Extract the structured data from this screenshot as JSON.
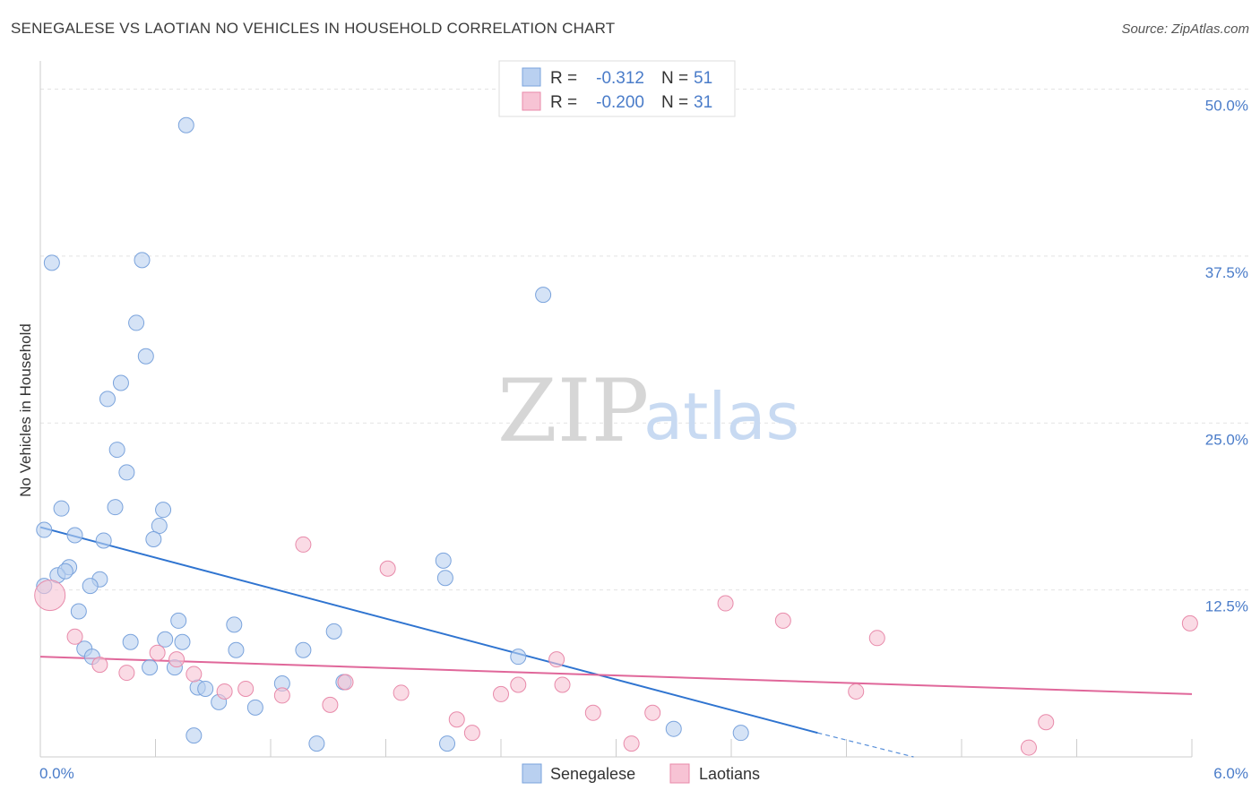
{
  "title": "SENEGALESE VS LAOTIAN NO VEHICLES IN HOUSEHOLD CORRELATION CHART",
  "source": "Source: ZipAtlas.com",
  "watermark": {
    "zip": "ZIP",
    "atlas": "atlas"
  },
  "colors": {
    "senegalese_fill": "#b9d0f0",
    "senegalese_stroke": "#7aa3dc",
    "senegalese_line": "#2f74d0",
    "laotian_fill": "#f7c3d4",
    "laotian_stroke": "#e88aaa",
    "laotian_line": "#e0679a",
    "tick_label": "#4a7cc9",
    "grid": "#e3e3e3"
  },
  "legend": {
    "r_label": "R =",
    "n_label": "N =",
    "rows": [
      {
        "r": "-0.312",
        "n": "51"
      },
      {
        "r": "-0.200",
        "n": "31"
      }
    ]
  },
  "chart_data": {
    "type": "scatter",
    "title": "SENEGALESE VS LAOTIAN NO VEHICLES IN HOUSEHOLD CORRELATION CHART",
    "xlabel": "",
    "ylabel": "No Vehicles in Household",
    "xlim": [
      0,
      6.0
    ],
    "ylim": [
      0,
      50.0
    ],
    "x_tick_labels": [
      "0.0%",
      "6.0%"
    ],
    "y_ticks": [
      12.5,
      25.0,
      37.5,
      50.0
    ],
    "y_tick_labels": [
      "12.5%",
      "25.0%",
      "37.5%",
      "50.0%"
    ],
    "grid": true,
    "legend_position": "top-center",
    "series": [
      {
        "name": "Senegalese",
        "points": [
          [
            0.76,
            47.3
          ],
          [
            0.06,
            37.0
          ],
          [
            0.53,
            37.2
          ],
          [
            2.62,
            34.6
          ],
          [
            0.5,
            32.5
          ],
          [
            0.55,
            30.0
          ],
          [
            0.42,
            28.0
          ],
          [
            0.35,
            26.8
          ],
          [
            0.4,
            23.0
          ],
          [
            0.45,
            21.3
          ],
          [
            0.11,
            18.6
          ],
          [
            0.39,
            18.7
          ],
          [
            0.64,
            18.5
          ],
          [
            0.02,
            17.0
          ],
          [
            0.62,
            17.3
          ],
          [
            0.18,
            16.6
          ],
          [
            0.33,
            16.2
          ],
          [
            0.59,
            16.3
          ],
          [
            2.1,
            14.7
          ],
          [
            0.15,
            14.2
          ],
          [
            0.09,
            13.6
          ],
          [
            0.13,
            13.9
          ],
          [
            0.31,
            13.3
          ],
          [
            2.11,
            13.4
          ],
          [
            0.26,
            12.8
          ],
          [
            0.02,
            12.8
          ],
          [
            0.2,
            10.9
          ],
          [
            0.72,
            10.2
          ],
          [
            1.01,
            9.9
          ],
          [
            1.53,
            9.4
          ],
          [
            0.65,
            8.8
          ],
          [
            0.47,
            8.6
          ],
          [
            0.74,
            8.6
          ],
          [
            0.23,
            8.1
          ],
          [
            1.02,
            8.0
          ],
          [
            1.37,
            8.0
          ],
          [
            0.27,
            7.5
          ],
          [
            2.49,
            7.5
          ],
          [
            0.57,
            6.7
          ],
          [
            0.7,
            6.7
          ],
          [
            1.26,
            5.5
          ],
          [
            1.58,
            5.6
          ],
          [
            0.82,
            5.2
          ],
          [
            0.86,
            5.1
          ],
          [
            0.93,
            4.1
          ],
          [
            1.12,
            3.7
          ],
          [
            3.3,
            2.1
          ],
          [
            3.65,
            1.8
          ],
          [
            0.8,
            1.6
          ],
          [
            1.44,
            1.0
          ],
          [
            2.12,
            1.0
          ]
        ]
      },
      {
        "name": "Laotians",
        "points": [
          [
            1.37,
            15.9
          ],
          [
            1.81,
            14.1
          ],
          [
            3.57,
            11.5
          ],
          [
            3.87,
            10.2
          ],
          [
            5.99,
            10.0
          ],
          [
            4.36,
            8.9
          ],
          [
            0.18,
            9.0
          ],
          [
            0.61,
            7.8
          ],
          [
            2.69,
            7.3
          ],
          [
            0.71,
            7.3
          ],
          [
            0.31,
            6.9
          ],
          [
            0.45,
            6.3
          ],
          [
            0.8,
            6.2
          ],
          [
            0.05,
            12.1
          ],
          [
            1.59,
            5.6
          ],
          [
            1.07,
            5.1
          ],
          [
            2.72,
            5.4
          ],
          [
            2.49,
            5.4
          ],
          [
            0.96,
            4.9
          ],
          [
            1.26,
            4.6
          ],
          [
            1.88,
            4.8
          ],
          [
            2.4,
            4.7
          ],
          [
            4.25,
            4.9
          ],
          [
            1.51,
            3.9
          ],
          [
            2.88,
            3.3
          ],
          [
            3.19,
            3.3
          ],
          [
            2.17,
            2.8
          ],
          [
            5.24,
            2.6
          ],
          [
            2.25,
            1.8
          ],
          [
            3.08,
            1.0
          ],
          [
            5.15,
            0.7
          ]
        ]
      }
    ],
    "trend_lines": [
      {
        "series": "Senegalese",
        "x": [
          0.0,
          4.05
        ],
        "y": [
          17.2,
          1.8
        ],
        "dashed_extension": {
          "x": [
            4.05,
            4.55
          ],
          "y": [
            1.8,
            0.0
          ]
        }
      },
      {
        "series": "Laotians",
        "x": [
          0.0,
          6.0
        ],
        "y": [
          7.5,
          4.7
        ]
      }
    ]
  },
  "bottom_legend": [
    {
      "label": "Senegalese"
    },
    {
      "label": "Laotians"
    }
  ]
}
